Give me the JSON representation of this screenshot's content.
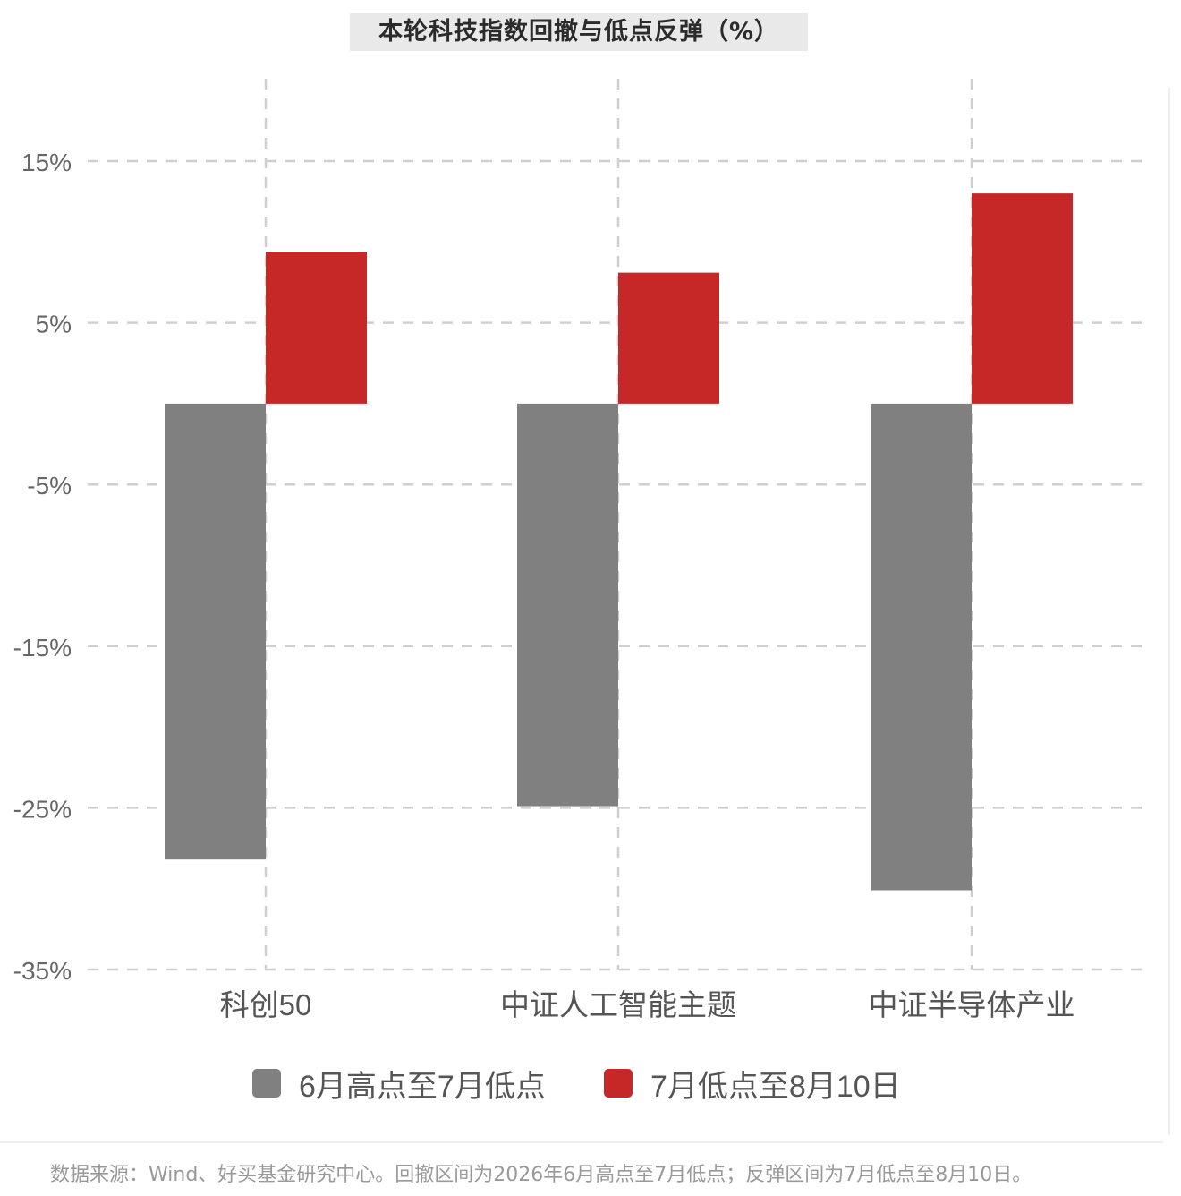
{
  "chart_data": {
    "type": "bar",
    "title": "本轮科技指数回撤与低点反弹（%）",
    "categories": [
      "科创50",
      "中证人工智能主题",
      "中证半导体产业"
    ],
    "series": [
      {
        "name": "6月高点至7月低点",
        "values": [
          -28.2,
          -24.9,
          -30.1
        ],
        "color": "#808080"
      },
      {
        "name": "7月低点至8月10日",
        "values": [
          9.4,
          8.1,
          13.0
        ],
        "color": "#c62828"
      }
    ],
    "yticks": [
      "15%",
      "5%",
      "-5%",
      "-15%",
      "-25%",
      "-35%"
    ],
    "ytick_values": [
      15,
      5,
      -5,
      -15,
      -25,
      -35
    ],
    "ylim": [
      -35,
      15
    ],
    "grid": true,
    "legend_position": "bottom"
  },
  "source_note": "数据来源：Wind、好买基金研究中心。回撤区间为2026年6月高点至7月低点；反弹区间为7月低点至8月10日。"
}
